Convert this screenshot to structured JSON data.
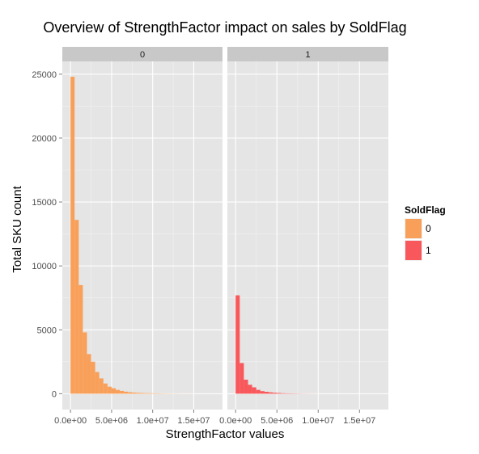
{
  "chart_data": {
    "type": "bar",
    "title": "Overview of StrengthFactor impact on sales by SoldFlag",
    "xlabel": "StrengthFactor values",
    "ylabel": "Total SKU count",
    "bin_width": 500000,
    "xlim": [
      -1000000,
      18500000
    ],
    "ylim": [
      -1240,
      26000
    ],
    "x_ticks": [
      0,
      5000000,
      10000000,
      15000000
    ],
    "x_tick_labels": [
      "0.0e+00",
      "5.0e+06",
      "1.0e+07",
      "1.5e+07"
    ],
    "y_ticks": [
      0,
      5000,
      10000,
      15000,
      20000,
      25000
    ],
    "y_tick_labels": [
      "0",
      "5000",
      "10000",
      "15000",
      "20000",
      "25000"
    ],
    "legend": {
      "title": "SoldFlag",
      "position": "right",
      "entries": [
        {
          "label": "0",
          "color": "#F8A05A"
        },
        {
          "label": "1",
          "color": "#F8585B"
        }
      ]
    },
    "panels": [
      {
        "strip_label": "0",
        "color": "#F8A05A",
        "bin_starts": [
          0,
          500000,
          1000000,
          1500000,
          2000000,
          2500000,
          3000000,
          3500000,
          4000000,
          4500000,
          5000000,
          5500000,
          6000000,
          6500000,
          7000000,
          7500000,
          8000000,
          8500000,
          9000000,
          9500000,
          10000000,
          10500000,
          11000000,
          11500000,
          12000000,
          12500000,
          13000000,
          13500000,
          14000000,
          14500000
        ],
        "values": [
          24800,
          13600,
          8500,
          4800,
          3100,
          2500,
          1700,
          1200,
          800,
          550,
          430,
          300,
          220,
          160,
          120,
          90,
          70,
          55,
          45,
          40,
          30,
          25,
          20,
          15,
          12,
          10,
          8,
          6,
          5,
          5
        ]
      },
      {
        "strip_label": "1",
        "color": "#F8585B",
        "bin_starts": [
          0,
          500000,
          1000000,
          1500000,
          2000000,
          2500000,
          3000000,
          3500000,
          4000000,
          4500000,
          5000000,
          5500000,
          6000000,
          6500000,
          7000000,
          7500000,
          8000000,
          8500000,
          9000000,
          9500000
        ],
        "values": [
          7700,
          2400,
          1100,
          700,
          500,
          300,
          200,
          150,
          110,
          80,
          60,
          40,
          30,
          25,
          20,
          15,
          10,
          8,
          6,
          5
        ]
      }
    ]
  }
}
